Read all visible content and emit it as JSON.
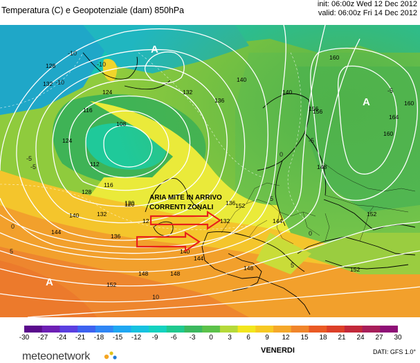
{
  "header": {
    "title": "Temperatura (C) e Geopotenziale (dam) 850hPa",
    "init": "init: 06:00z Wed 12 Dec 2012",
    "valid": "valid: 06:00z Fri 14 Dec 2012"
  },
  "map": {
    "annotation_line1": "ARIA MITE IN ARRIVO",
    "annotation_line2": "CORRENTI ZONALI",
    "highs": [
      "A",
      "A",
      "A"
    ],
    "isohypse_labels": [
      "128",
      "132",
      "124",
      "116",
      "108",
      "112",
      "116",
      "120",
      "124",
      "128",
      "132",
      "136",
      "140",
      "140",
      "144",
      "148",
      "152",
      "136",
      "132",
      "140",
      "148",
      "152",
      "156",
      "160",
      "164",
      "160",
      "144",
      "152",
      "140",
      "136",
      "132",
      "120",
      "12",
      "152",
      "144",
      "148",
      "148",
      "156",
      "160"
    ],
    "isotherm_labels": [
      "-10",
      "-5",
      "0",
      "5",
      "-5",
      "-10",
      "0",
      "5",
      "-5",
      "0",
      "5",
      "10",
      "-10",
      "-5"
    ],
    "colors": {
      "annotation_arrow": "#e8201a",
      "isoline": "#ffffff",
      "coast": "#000000"
    }
  },
  "legend": {
    "ticks": [
      "-30",
      "-27",
      "-24",
      "-21",
      "-18",
      "-15",
      "-12",
      "-9",
      "-6",
      "-3",
      "0",
      "3",
      "6",
      "9",
      "12",
      "15",
      "18",
      "21",
      "24",
      "27",
      "30"
    ],
    "colors": [
      "#5a0a8c",
      "#6d1fb4",
      "#5b3fe0",
      "#3d62f0",
      "#2f86f5",
      "#1fa7f2",
      "#17c2e0",
      "#14d2c0",
      "#1fc98f",
      "#3cb85f",
      "#5cc24a",
      "#b5d93a",
      "#f2e61e",
      "#f7c923",
      "#f5a82a",
      "#f0852b",
      "#ea5a24",
      "#dc3f28",
      "#c2283a",
      "#a71e5a",
      "#8e0f76"
    ]
  },
  "footer": {
    "day": "VENERDI",
    "source": "DATI: GFS 1.0°",
    "logo": "meteonetwork"
  }
}
